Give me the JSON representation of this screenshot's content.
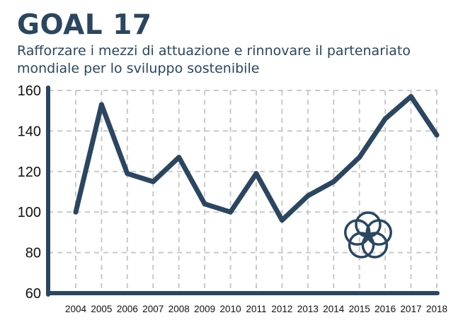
{
  "header": {
    "title": "GOAL 17",
    "subtitle": "Rafforzare i mezzi di attuazione e rinnovare il partenariato mondiale per lo sviluppo sostenibile"
  },
  "colors": {
    "primary": "#2a4660",
    "grid": "#c9c9c9"
  },
  "icon": "sdg17-interlocking-rings-icon",
  "chart_data": {
    "type": "line",
    "title": "",
    "xlabel": "",
    "ylabel": "",
    "grid": true,
    "ylim": [
      60,
      160
    ],
    "yticks": [
      60,
      80,
      100,
      120,
      140,
      160
    ],
    "categories": [
      "2004",
      "2005",
      "2006",
      "2007",
      "2008",
      "2009",
      "2010",
      "2011",
      "2012",
      "2013",
      "2014",
      "2015",
      "2016",
      "2017",
      "2018"
    ],
    "series": [
      {
        "values": [
          100,
          153,
          119,
          115,
          127,
          104,
          100,
          119,
          96,
          108,
          115,
          127,
          146,
          157,
          138
        ]
      }
    ]
  }
}
